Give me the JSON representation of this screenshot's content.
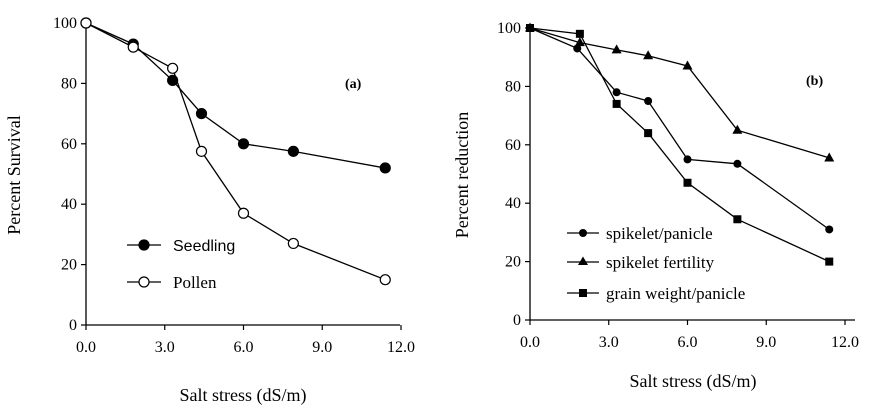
{
  "chart_data": [
    {
      "type": "line",
      "panel_label": "(a)",
      "xlabel": "Salt stress (dS/m)",
      "ylabel": "Percent Survival",
      "xlim": [
        0,
        12
      ],
      "ylim": [
        0,
        100
      ],
      "xticks": [
        "0.0",
        "3.0",
        "6.0",
        "9.0",
        "12.0"
      ],
      "yticks": [
        "0",
        "20",
        "40",
        "60",
        "80",
        "100"
      ],
      "grid": false,
      "legend_position": "bottom-left",
      "series": [
        {
          "name": "Seedling",
          "marker": "filled-circle",
          "x": [
            0,
            1.8,
            3.3,
            4.4,
            6.0,
            7.9,
            11.4
          ],
          "y": [
            100,
            93,
            81,
            70,
            60,
            57.5,
            52
          ]
        },
        {
          "name": "Pollen",
          "marker": "open-circle",
          "x": [
            0,
            1.8,
            3.3,
            4.4,
            6.0,
            7.9,
            11.4
          ],
          "y": [
            100,
            92,
            85,
            57.5,
            37,
            27,
            15
          ]
        }
      ]
    },
    {
      "type": "line",
      "panel_label": "(b)",
      "xlabel": "Salt stress (dS/m)",
      "ylabel": "Percent reduction",
      "xlim": [
        0,
        12
      ],
      "ylim": [
        0,
        100
      ],
      "xticks": [
        "0.0",
        "3.0",
        "6.0",
        "9.0",
        "12.0"
      ],
      "yticks": [
        "0",
        "20",
        "40",
        "60",
        "80",
        "100"
      ],
      "grid": false,
      "legend_position": "bottom-left",
      "series": [
        {
          "name": "spikelet/panicle",
          "marker": "circle",
          "x": [
            0,
            1.8,
            3.3,
            4.5,
            6.0,
            7.9,
            11.4
          ],
          "y": [
            100,
            93,
            78,
            75,
            55,
            53.5,
            31
          ]
        },
        {
          "name": "spikelet fertility",
          "marker": "triangle",
          "x": [
            0,
            1.9,
            3.3,
            4.5,
            6.0,
            7.9,
            11.4
          ],
          "y": [
            100,
            95,
            92.5,
            90.5,
            87,
            65,
            55.5
          ]
        },
        {
          "name": "grain weight/panicle",
          "marker": "square",
          "x": [
            0,
            1.9,
            3.3,
            4.5,
            6.0,
            7.9,
            11.4
          ],
          "y": [
            100,
            98,
            74,
            64,
            47,
            34.5,
            20
          ]
        }
      ]
    }
  ]
}
